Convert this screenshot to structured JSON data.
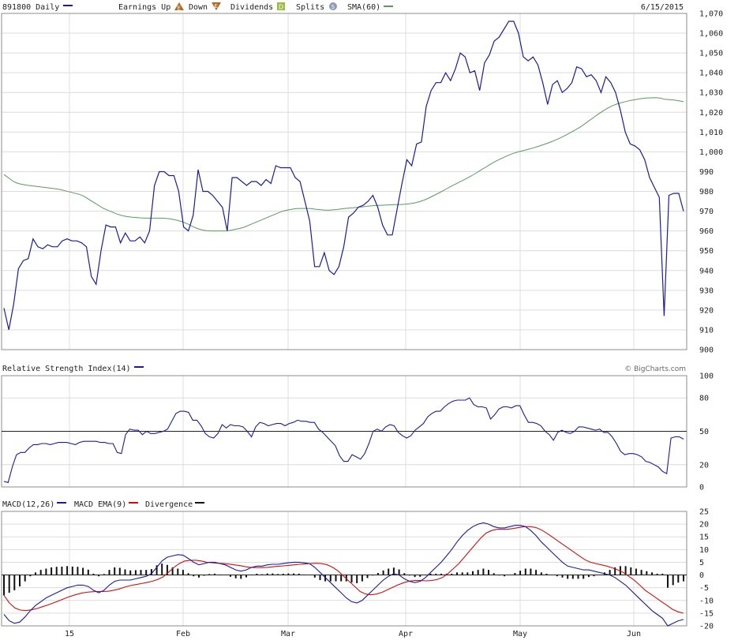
{
  "header": {
    "symbol_label": "891800 Daily",
    "earnings_label": "Earnings Up",
    "earnings_up_glyph": "E",
    "down_label": "Down",
    "earnings_down_glyph": "E",
    "dividends_label": "Dividends",
    "dividends_glyph": "D",
    "splits_label": "Splits",
    "splits_glyph": "S",
    "sma_label": "SMA(60)",
    "date": "6/15/2015",
    "watermark": "© BigCharts.com"
  },
  "colors": {
    "price": "#1c1c9c",
    "sma": "#5a9a5a",
    "rsi": "#1c1c9c",
    "macd": "#1c1c9c",
    "ema": "#d01010",
    "divergence": "#111111",
    "grid": "#dcdcdc",
    "frame": "#8c8c8c",
    "earnings_up": "#b5651d",
    "dividends": "#9cbd3a",
    "splits": "#8c9cb5"
  },
  "chart_data": [
    {
      "type": "line",
      "title": "891800 Daily",
      "x_ticks": [
        "15",
        "Feb",
        "Mar",
        "Apr",
        "May",
        "Jun"
      ],
      "ylim": [
        900,
        1070
      ],
      "y_ticks": [
        "900",
        "910",
        "920",
        "930",
        "940",
        "950",
        "960",
        "970",
        "980",
        "990",
        "1,000",
        "1,010",
        "1,020",
        "1,030",
        "1,040",
        "1,050",
        "1,060",
        "1,070"
      ],
      "grid": true,
      "series": [
        {
          "name": "891800 Daily",
          "values": [
            921,
            910,
            923,
            941,
            945,
            946,
            956,
            952,
            951,
            953,
            952,
            952,
            955,
            956,
            955,
            955,
            954,
            952,
            937,
            933,
            950,
            963,
            962,
            962,
            954,
            959,
            955,
            955,
            957,
            954,
            960,
            983,
            990,
            990,
            988,
            988,
            980,
            962,
            960,
            968,
            991,
            980,
            980,
            978,
            975,
            972,
            960,
            987,
            987,
            985,
            983,
            985,
            985,
            983,
            986,
            984,
            993,
            992,
            992,
            992,
            987,
            985,
            975,
            965,
            942,
            942,
            949,
            940,
            938,
            942,
            952,
            967,
            969,
            972,
            973,
            975,
            978,
            972,
            963,
            958,
            958,
            971,
            984,
            996,
            993,
            1004,
            1005,
            1023,
            1031,
            1035,
            1035,
            1040,
            1036,
            1042,
            1050,
            1048,
            1040,
            1041,
            1031,
            1045,
            1049,
            1056,
            1058,
            1062,
            1066,
            1066,
            1060,
            1048,
            1046,
            1048,
            1044,
            1035,
            1024,
            1034,
            1036,
            1030,
            1032,
            1035,
            1043,
            1042,
            1038,
            1039,
            1036,
            1030,
            1038,
            1035,
            1030,
            1021,
            1010,
            1004,
            1003,
            1001,
            996,
            987,
            982,
            977,
            917,
            978,
            979,
            979,
            970
          ]
        },
        {
          "name": "SMA(60)",
          "values": [
            988.5,
            986.8,
            985.0,
            984.0,
            983.5,
            983.1,
            982.8,
            982.5,
            982.2,
            981.9,
            981.6,
            981.3,
            980.9,
            980.3,
            979.7,
            979.1,
            978.5,
            977.5,
            976.0,
            974.5,
            973.0,
            971.5,
            970.5,
            969.5,
            968.5,
            967.8,
            967.3,
            967.0,
            966.8,
            966.6,
            966.5,
            966.5,
            966.5,
            966.5,
            966.4,
            966.2,
            965.8,
            965.2,
            964.5,
            963.5,
            962.2,
            961.2,
            960.5,
            960.1,
            960.0,
            960.0,
            960.0,
            960.0,
            960.3,
            960.8,
            961.3,
            962.0,
            963.0,
            964.0,
            965.0,
            966.0,
            967.0,
            968.0,
            969.0,
            970.0,
            970.5,
            971.0,
            971.3,
            971.4,
            971.4,
            971.3,
            971.0,
            970.8,
            970.5,
            970.5,
            970.7,
            971.0,
            971.3,
            971.5,
            971.7,
            972.0,
            972.2,
            972.5,
            972.7,
            972.9,
            973.0,
            973.1,
            973.2,
            973.3,
            973.4,
            973.5,
            973.8,
            974.2,
            974.8,
            975.6,
            976.6,
            977.8,
            979.0,
            980.3,
            981.6,
            982.9,
            984.1,
            985.3,
            986.5,
            987.8,
            989.2,
            990.7,
            992.2,
            993.6,
            995.0,
            996.2,
            997.3,
            998.4,
            999.3,
            1000.0,
            1000.6,
            1001.2,
            1001.9,
            1002.6,
            1003.4,
            1004.2,
            1005.1,
            1006.1,
            1007.2,
            1008.4,
            1009.7,
            1011.0,
            1012.4,
            1014.0,
            1015.8,
            1017.5,
            1019.2,
            1020.8,
            1022.2,
            1023.4,
            1024.3,
            1025.0,
            1025.6,
            1026.1,
            1026.5,
            1026.9,
            1027.2,
            1027.3,
            1027.4,
            1027.2,
            1026.6,
            1026.4,
            1026.2,
            1025.8,
            1025.4
          ]
        }
      ]
    },
    {
      "type": "line",
      "title": "Relative Strength Index(14)",
      "ylim": [
        0,
        100
      ],
      "y_ticks": [
        "0",
        "20",
        "50",
        "80",
        "100"
      ],
      "reference_line": 50,
      "grid": true,
      "series": [
        {
          "name": "Relative Strength Index(14)",
          "values": [
            5,
            4,
            18,
            29,
            31,
            31,
            35,
            38,
            38,
            39,
            39,
            38,
            39,
            40,
            40,
            40,
            39,
            38,
            40,
            41,
            41,
            41,
            41,
            40,
            40,
            39,
            39,
            31,
            30,
            47,
            52,
            51,
            51,
            47,
            50,
            48,
            48,
            49,
            50,
            52,
            59,
            66,
            68,
            68,
            67,
            60,
            60,
            55,
            48,
            45,
            44,
            48,
            56,
            53,
            56,
            55,
            55,
            54,
            50,
            45,
            54,
            58,
            57,
            55,
            56,
            57,
            57,
            55,
            57,
            58,
            60,
            59,
            59,
            58,
            58,
            52,
            49,
            45,
            41,
            37,
            28,
            23,
            23,
            29,
            27,
            25,
            30,
            39,
            50,
            52,
            50,
            54,
            56,
            55,
            49,
            46,
            44,
            46,
            51,
            54,
            57,
            63,
            66,
            68,
            68,
            72,
            75,
            77,
            78,
            78,
            78,
            80,
            74,
            72,
            72,
            71,
            61,
            65,
            70,
            72,
            72,
            71,
            73,
            73,
            65,
            58,
            58,
            57,
            55,
            50,
            47,
            42,
            49,
            51,
            49,
            48,
            50,
            54,
            54,
            53,
            52,
            51,
            52,
            49,
            49,
            45,
            39,
            32,
            29,
            30,
            30,
            29,
            27,
            23,
            22,
            20,
            18,
            14,
            12,
            44,
            45,
            45,
            43
          ]
        }
      ]
    },
    {
      "type": "line",
      "title": "MACD(12,26)",
      "ylim": [
        -20,
        25
      ],
      "y_ticks": [
        "-20",
        "-15",
        "-10",
        "-5",
        "0",
        "5",
        "10",
        "15",
        "20",
        "25"
      ],
      "grid": true,
      "series": [
        {
          "name": "MACD(12,26)",
          "values": [
            -15.5,
            -18.0,
            -19.0,
            -18.5,
            -16.5,
            -14.0,
            -12.0,
            -10.5,
            -9.0,
            -8.0,
            -7.0,
            -6.0,
            -5.0,
            -4.5,
            -4.0,
            -4.0,
            -4.5,
            -6.0,
            -7.0,
            -6.0,
            -4.0,
            -2.5,
            -2.0,
            -2.0,
            -2.0,
            -1.5,
            -1.0,
            -0.5,
            0.5,
            3.0,
            5.5,
            7.0,
            7.5,
            8.0,
            7.8,
            6.5,
            5.0,
            4.0,
            4.5,
            5.0,
            5.0,
            4.5,
            4.0,
            3.0,
            2.0,
            1.5,
            2.0,
            3.0,
            3.5,
            3.5,
            4.0,
            4.2,
            4.2,
            4.5,
            4.8,
            5.0,
            5.0,
            4.8,
            4.5,
            3.0,
            1.0,
            -1.0,
            -3.0,
            -5.0,
            -7.0,
            -9.0,
            -10.5,
            -11.0,
            -10.0,
            -8.0,
            -6.0,
            -4.0,
            -2.0,
            -0.5,
            0.5,
            0.0,
            -1.5,
            -2.5,
            -3.0,
            -2.5,
            -1.0,
            1.0,
            3.0,
            5.0,
            7.5,
            10.0,
            13.0,
            15.5,
            17.5,
            19.0,
            20.0,
            20.5,
            20.0,
            19.0,
            18.5,
            18.5,
            19.0,
            19.5,
            19.5,
            19.0,
            17.5,
            15.5,
            13.0,
            11.0,
            9.0,
            7.0,
            5.0,
            3.5,
            3.0,
            2.5,
            2.0,
            2.0,
            1.5,
            1.0,
            0.5,
            0.0,
            -1.0,
            -2.5,
            -4.0,
            -6.0,
            -8.0,
            -10.0,
            -12.0,
            -14.0,
            -15.5,
            -17.0,
            -20.0,
            -19.0,
            -18.0,
            -17.5
          ]
        },
        {
          "name": "MACD EMA(9)",
          "values": [
            -8.0,
            -11.0,
            -13.0,
            -13.8,
            -14.0,
            -13.7,
            -13.2,
            -12.5,
            -11.8,
            -11.0,
            -10.2,
            -9.3,
            -8.5,
            -7.8,
            -7.2,
            -6.8,
            -6.6,
            -6.5,
            -6.5,
            -6.4,
            -6.0,
            -5.5,
            -4.8,
            -4.2,
            -3.8,
            -3.4,
            -3.0,
            -2.5,
            -1.8,
            -0.8,
            1.0,
            3.0,
            4.5,
            5.5,
            5.8,
            5.8,
            5.5,
            5.0,
            4.8,
            4.6,
            4.5,
            4.3,
            4.0,
            3.7,
            3.3,
            3.0,
            2.9,
            2.9,
            3.0,
            3.2,
            3.4,
            3.6,
            3.8,
            4.0,
            4.2,
            4.4,
            4.5,
            4.6,
            4.5,
            4.0,
            3.0,
            1.5,
            -0.5,
            -2.5,
            -4.5,
            -6.5,
            -7.5,
            -7.8,
            -7.5,
            -6.8,
            -5.8,
            -4.8,
            -3.8,
            -3.0,
            -2.4,
            -2.2,
            -2.2,
            -2.3,
            -2.2,
            -1.8,
            -1.0,
            0.5,
            2.5,
            4.5,
            7.0,
            9.5,
            12.0,
            14.5,
            16.5,
            17.5,
            18.0,
            18.0,
            18.0,
            18.3,
            18.7,
            19.0,
            19.0,
            18.7,
            17.8,
            16.5,
            15.0,
            13.5,
            12.0,
            10.5,
            9.0,
            7.5,
            6.0,
            5.0,
            4.5,
            4.0,
            3.5,
            2.8,
            2.0,
            1.0,
            -0.5,
            -2.0,
            -4.0,
            -6.0,
            -7.5,
            -9.0,
            -10.5,
            -12.0,
            -13.5,
            -14.5,
            -15.0
          ]
        },
        {
          "name": "Divergence",
          "type": "bar",
          "values": [
            -8,
            -7,
            -6,
            -4.5,
            -2.5,
            -0.5,
            1.0,
            2.0,
            2.5,
            3.0,
            3.2,
            3.3,
            3.5,
            3.3,
            3.2,
            2.8,
            2.1,
            0.5,
            -0.5,
            0.4,
            2.0,
            3.0,
            2.8,
            2.2,
            1.8,
            1.9,
            2.0,
            2.0,
            2.3,
            3.8,
            4.5,
            4.0,
            3.0,
            2.5,
            2.0,
            0.7,
            -0.5,
            -1.0,
            -0.3,
            0.4,
            0.5,
            0.2,
            0.0,
            -0.7,
            -1.3,
            -1.5,
            -0.9,
            0.1,
            0.5,
            0.3,
            0.6,
            0.6,
            0.4,
            0.5,
            0.6,
            0.6,
            0.5,
            0.2,
            0.0,
            -1.0,
            -2.0,
            -2.5,
            -2.5,
            -2.5,
            -2.5,
            -2.5,
            -3.0,
            -3.2,
            -2.5,
            -1.2,
            -0.2,
            0.8,
            1.8,
            2.5,
            2.9,
            2.2,
            0.7,
            -0.2,
            -0.8,
            -0.7,
            0.0,
            0.5,
            0.5,
            0.5,
            0.5,
            0.5,
            1.0,
            1.0,
            1.0,
            1.5,
            2.0,
            2.5,
            2.0,
            0.7,
            -0.2,
            -0.5,
            0.0,
            0.8,
            1.7,
            2.5,
            2.5,
            2.0,
            1.0,
            0.5,
            0.0,
            -0.5,
            -1.0,
            -1.5,
            -1.5,
            -1.5,
            -1.5,
            -0.8,
            -0.5,
            0.0,
            1.0,
            2.0,
            3.0,
            3.5,
            3.5,
            3.0,
            2.5,
            2.0,
            1.5,
            1.0,
            0.5,
            0.5,
            -5.0,
            -4.0,
            -3.0,
            -2.5
          ]
        }
      ]
    }
  ]
}
